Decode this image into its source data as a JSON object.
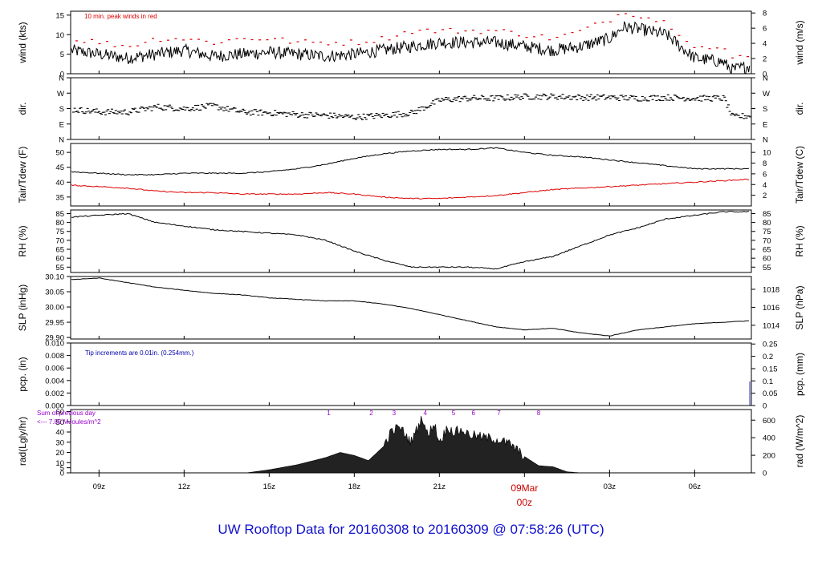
{
  "title": "UW Rooftop Data for 20160308  to  20160309 @ 07:58:26  (UTC)",
  "colors": {
    "title": "#1010cc",
    "peak": "#dd0000",
    "dew": "#dd0000",
    "accent": "#cc0000",
    "purple": "#9900cc",
    "note_blue": "#0000aa",
    "line": "#000000"
  },
  "x_axis": {
    "ticks": [
      "09z",
      "12z",
      "15z",
      "18z",
      "21z",
      "00z",
      "03z",
      "06z"
    ],
    "tick_hours": [
      9,
      12,
      15,
      18,
      21,
      24,
      27,
      30
    ],
    "date_label": "09Mar",
    "midnight_label": "00z",
    "range_hours": [
      8,
      32
    ]
  },
  "chart_data": [
    {
      "type": "line",
      "id": "wind",
      "ylabel_left": "wind (kts)",
      "ylabel_right": "wind (m/s)",
      "ylim": [
        0,
        16
      ],
      "yticks_left": [
        "0",
        "5",
        "10",
        "15"
      ],
      "yticks_left_values": [
        0,
        5,
        10,
        15
      ],
      "yticks_right": [
        "0",
        "2",
        "4",
        "6",
        "8"
      ],
      "yticks_right_values": [
        0,
        3.89,
        7.78,
        11.66,
        15.55
      ],
      "annotation": "10 min. peak winds in red",
      "series": [
        {
          "name": "wind speed",
          "x": [
            8,
            9,
            10,
            11,
            12,
            13,
            14,
            15,
            16,
            17,
            18,
            19,
            20,
            21,
            22,
            23,
            24,
            25,
            26,
            27,
            27.5,
            28,
            29,
            29.5,
            30,
            31,
            31.3,
            32
          ],
          "y": [
            6,
            5,
            4,
            5,
            6,
            4.5,
            5,
            5.5,
            5,
            4.5,
            5,
            6,
            7,
            8,
            8,
            8,
            7,
            6,
            7,
            9,
            12,
            11.5,
            10,
            7,
            4,
            3,
            1,
            2
          ]
        },
        {
          "name": "10 min peak",
          "x": [
            8,
            9,
            10,
            11,
            12,
            13,
            14,
            15,
            16,
            17,
            18,
            19,
            20,
            21,
            22,
            23,
            24,
            25,
            26,
            27,
            27.5,
            28,
            29,
            29.5,
            30,
            31,
            31.3,
            32
          ],
          "y": [
            9,
            8,
            7,
            9,
            9,
            8,
            9,
            9,
            8,
            8,
            8,
            9,
            11,
            11,
            11,
            11,
            10,
            9,
            11,
            14,
            16,
            15,
            13,
            10,
            7,
            6,
            4,
            5
          ]
        }
      ]
    },
    {
      "type": "scatter",
      "id": "dir",
      "ylabel_left": "dir.",
      "ylabel_right": "dir.",
      "ylim": [
        0,
        360
      ],
      "yticks_left": [
        "N",
        "E",
        "S",
        "W",
        "N"
      ],
      "yticks_left_values": [
        0,
        90,
        180,
        270,
        360
      ],
      "yticks_right": [
        "N",
        "E",
        "S",
        "W",
        "N"
      ],
      "yticks_right_values": [
        0,
        90,
        180,
        270,
        360
      ],
      "series": [
        {
          "name": "wind direction",
          "x": [
            8,
            9,
            10,
            11,
            12,
            13,
            14,
            15,
            16,
            17,
            18,
            19,
            20,
            21,
            22,
            23,
            24,
            25,
            26,
            27,
            28,
            29,
            30,
            31,
            31.3,
            32
          ],
          "y": [
            175,
            160,
            160,
            190,
            180,
            195,
            160,
            155,
            145,
            140,
            130,
            140,
            155,
            230,
            240,
            240,
            250,
            250,
            245,
            245,
            240,
            245,
            240,
            240,
            130,
            140
          ]
        }
      ]
    },
    {
      "type": "line",
      "id": "temp",
      "ylabel_left": "Tair/Tdew (F)",
      "ylabel_right": "Tair/Tdew (C)",
      "ylim": [
        32,
        53
      ],
      "yticks_left": [
        "35",
        "40",
        "45",
        "50"
      ],
      "yticks_left_values": [
        35,
        40,
        45,
        50
      ],
      "yticks_right": [
        "2",
        "4",
        "6",
        "8",
        "10"
      ],
      "yticks_right_values": [
        35.6,
        39.2,
        42.8,
        46.4,
        50
      ],
      "series": [
        {
          "name": "Tair",
          "x": [
            8,
            9,
            10,
            11,
            12,
            13,
            14,
            15,
            16,
            17,
            18,
            19,
            20,
            21,
            22,
            23,
            24,
            25,
            26,
            27,
            28,
            29,
            30,
            31,
            32
          ],
          "y": [
            43.5,
            43,
            42.5,
            42.5,
            43,
            43,
            43,
            43.5,
            44.5,
            46,
            48,
            49.5,
            50.5,
            51,
            51,
            51.5,
            50,
            49,
            48.5,
            47.5,
            46.5,
            45.5,
            44.5,
            44.5,
            44.5
          ]
        },
        {
          "name": "Tdew",
          "x": [
            8,
            9,
            10,
            11,
            12,
            13,
            14,
            15,
            16,
            17,
            18,
            19,
            20,
            21,
            22,
            23,
            24,
            25,
            26,
            27,
            28,
            29,
            30,
            31,
            32
          ],
          "y": [
            39,
            38.5,
            38,
            37,
            36.5,
            36.5,
            36,
            36,
            36,
            36.5,
            36,
            35,
            34.5,
            34.5,
            35,
            35.5,
            36.5,
            37.5,
            38,
            38.5,
            39,
            39.5,
            40,
            40.5,
            41
          ]
        }
      ]
    },
    {
      "type": "line",
      "id": "rh",
      "ylabel_left": "RH (%)",
      "ylabel_right": "RH (%)",
      "ylim": [
        52,
        87
      ],
      "yticks_left": [
        "55",
        "60",
        "65",
        "70",
        "75",
        "80",
        "85"
      ],
      "yticks_left_values": [
        55,
        60,
        65,
        70,
        75,
        80,
        85
      ],
      "yticks_right": [
        "55",
        "60",
        "65",
        "70",
        "75",
        "80",
        "85"
      ],
      "yticks_right_values": [
        55,
        60,
        65,
        70,
        75,
        80,
        85
      ],
      "series": [
        {
          "name": "RH",
          "x": [
            8,
            9,
            10,
            11,
            12,
            13,
            14,
            15,
            16,
            17,
            18,
            19,
            20,
            21,
            22,
            23,
            24,
            25,
            26,
            27,
            28,
            29,
            30,
            31,
            32
          ],
          "y": [
            83,
            84,
            85,
            80,
            78,
            76,
            75,
            74,
            73,
            70,
            64,
            59,
            55,
            55,
            55,
            54,
            58,
            61,
            67,
            73,
            77,
            82,
            84,
            86,
            86
          ]
        }
      ]
    },
    {
      "type": "line",
      "id": "slp",
      "ylabel_left": "SLP (inHg)",
      "ylabel_right": "SLP (hPa)",
      "ylim": [
        29.895,
        30.1
      ],
      "yticks_left": [
        "29.90",
        "29.95",
        "30.00",
        "30.05",
        "30.10"
      ],
      "yticks_left_values": [
        29.9,
        29.95,
        30.0,
        30.05,
        30.1
      ],
      "yticks_right": [
        "1014",
        "1016",
        "1018"
      ],
      "yticks_right_values": [
        29.94,
        29.999,
        30.058
      ],
      "series": [
        {
          "name": "SLP",
          "x": [
            8,
            9,
            10,
            11,
            12,
            13,
            14,
            15,
            16,
            17,
            18,
            19,
            20,
            21,
            22,
            23,
            24,
            25,
            26,
            27,
            28,
            29,
            30,
            31,
            32
          ],
          "y": [
            30.09,
            30.095,
            30.08,
            30.065,
            30.055,
            30.045,
            30.04,
            30.03,
            30.025,
            30.02,
            30.02,
            30.01,
            29.995,
            29.975,
            29.955,
            29.935,
            29.925,
            29.93,
            29.915,
            29.905,
            29.925,
            29.935,
            29.945,
            29.95,
            29.955
          ]
        }
      ]
    },
    {
      "type": "line",
      "id": "pcp",
      "ylabel_left": "pcp. (in)",
      "ylabel_right": "pcp. (mm)",
      "ylim": [
        0,
        0.01
      ],
      "yticks_left": [
        "0.000",
        "0.002",
        "0.004",
        "0.006",
        "0.008",
        "0.010"
      ],
      "yticks_left_values": [
        0,
        0.002,
        0.004,
        0.006,
        0.008,
        0.01
      ],
      "yticks_right": [
        "0",
        "0.05",
        "0.1",
        "0.15",
        "0.2",
        "0.25"
      ],
      "yticks_right_values": [
        0,
        0.00197,
        0.00394,
        0.0059,
        0.00787,
        0.00984
      ],
      "annotation": "Tip increments are 0.01in. (0.254mm.)",
      "series": [
        {
          "name": "precip",
          "x": [
            8,
            32
          ],
          "y": [
            0,
            0
          ]
        }
      ]
    },
    {
      "type": "area",
      "id": "rad",
      "ylabel_left": "rad(Lgly/hr)",
      "ylabel_right": "rad (W/m^2)",
      "ylim": [
        0,
        62
      ],
      "yticks_left": [
        "0",
        "5",
        "10",
        "20",
        "30",
        "40",
        "50",
        "60"
      ],
      "yticks_left_values": [
        0,
        5,
        10,
        20,
        30,
        40,
        50,
        60
      ],
      "yticks_right": [
        "0",
        "200",
        "400",
        "600"
      ],
      "yticks_right_values": [
        0,
        17.2,
        34.4,
        51.6
      ],
      "annotation_lines": [
        "Sum of previous day",
        "<--- 7.85 MJoules/m^2"
      ],
      "markers": [
        "1",
        "2",
        "3",
        "4",
        "5",
        "6",
        "7",
        "8"
      ],
      "marker_hours": [
        17.1,
        18.6,
        19.4,
        20.5,
        21.5,
        22.2,
        23.1,
        24.5
      ],
      "series": [
        {
          "name": "radiation",
          "x": [
            14.2,
            15,
            16,
            17,
            17.5,
            18,
            18.5,
            19,
            19.3,
            19.6,
            20,
            20.4,
            20.6,
            20.8,
            21,
            21.3,
            21.5,
            21.8,
            22,
            22.5,
            23,
            23.5,
            24,
            24.5,
            25,
            25.5,
            26
          ],
          "y": [
            0,
            3,
            8,
            15,
            20,
            17,
            12,
            25,
            40,
            45,
            30,
            55,
            35,
            50,
            30,
            45,
            40,
            42,
            38,
            35,
            33,
            28,
            16,
            7,
            6,
            1,
            0
          ]
        }
      ]
    }
  ]
}
